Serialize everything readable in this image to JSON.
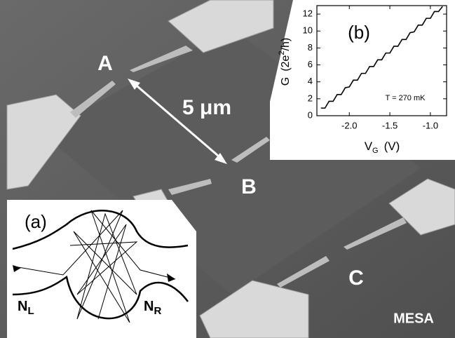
{
  "image_labels": {
    "point_a": "A",
    "point_b": "B",
    "point_c": "C",
    "scale_bar": "5 μm",
    "mesa": "MESA"
  },
  "inset_a": {
    "panel": "(a)",
    "left_lead": {
      "symbol": "N",
      "subscript": "L"
    },
    "right_lead": {
      "symbol": "N",
      "subscript": "R"
    }
  },
  "chart_data": {
    "type": "line",
    "panel": "(b)",
    "annotation": "T = 270 mK",
    "x_label": {
      "symbol": "V",
      "subscript": "G",
      "unit": "(V)"
    },
    "y_label": {
      "symbol": "G",
      "unit_before": "(2e",
      "superscript": "2",
      "unit_after": "/h)"
    },
    "x": [
      -2.35,
      -2.3,
      -2.25,
      -2.2,
      -2.15,
      -2.1,
      -2.05,
      -2.0,
      -1.95,
      -1.9,
      -1.85,
      -1.8,
      -1.75,
      -1.7,
      -1.65,
      -1.6,
      -1.55,
      -1.5,
      -1.45,
      -1.4,
      -1.35,
      -1.3,
      -1.25,
      -1.2,
      -1.15,
      -1.1,
      -1.05,
      -1.0,
      -0.95,
      -0.9,
      -0.85
    ],
    "series": [
      {
        "name": "G",
        "color": "#000000",
        "values": [
          0.9,
          0.9,
          1.7,
          1.7,
          2.5,
          2.5,
          3.3,
          3.4,
          4.2,
          4.2,
          5.0,
          5.0,
          5.8,
          5.8,
          6.6,
          6.6,
          7.4,
          7.4,
          8.2,
          8.2,
          9.0,
          9.0,
          9.8,
          9.9,
          10.7,
          10.7,
          11.5,
          11.5,
          12.3,
          12.3,
          12.9
        ]
      }
    ],
    "xlim": [
      -2.4,
      -0.8
    ],
    "ylim": [
      0,
      13
    ],
    "xticks": [
      {
        "value": -2.0,
        "label": "-2.0"
      },
      {
        "value": -1.5,
        "label": "-1.5"
      },
      {
        "value": -1.0,
        "label": "-1.0"
      }
    ],
    "yticks": [
      0,
      2,
      4,
      6,
      8,
      10,
      12
    ]
  }
}
